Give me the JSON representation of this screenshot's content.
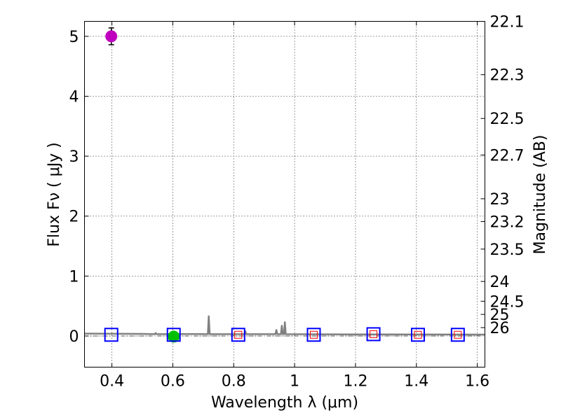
{
  "chart_data": {
    "type": "scatter",
    "xlabel": "Wavelength  λ (μm)",
    "ylabel": "Flux  Fν  ( μJy )",
    "y2label": "Magnitude (AB)",
    "xlim": [
      0.31,
      1.625
    ],
    "ylim": [
      -0.52,
      5.25
    ],
    "grid": true,
    "x_ticks": [
      0.4,
      0.6,
      0.8,
      1.0,
      1.2,
      1.4,
      1.6
    ],
    "x_tick_labels": [
      "0.4",
      "0.6",
      "0.8",
      "1",
      "1.2",
      "1.4",
      "1.6"
    ],
    "y_ticks": [
      0,
      1,
      2,
      3,
      4,
      5
    ],
    "y_tick_labels": [
      "0",
      "1",
      "2",
      "3",
      "4",
      "5"
    ],
    "magnitude_ticks": [
      {
        "label": "22.1",
        "flux": 5.25
      },
      {
        "label": "22.3",
        "flux": 4.36
      },
      {
        "label": "22.5",
        "flux": 3.63
      },
      {
        "label": "22.7",
        "flux": 3.02
      },
      {
        "label": "23",
        "flux": 2.29
      },
      {
        "label": "23.2",
        "flux": 1.91
      },
      {
        "label": "23.5",
        "flux": 1.45
      },
      {
        "label": "24",
        "flux": 0.91
      },
      {
        "label": "24.5",
        "flux": 0.58
      },
      {
        "label": "25",
        "flux": 0.36
      },
      {
        "label": "26",
        "flux": 0.14
      }
    ],
    "series": [
      {
        "name": "detection-ultraviolet",
        "marker": "circle",
        "color": "#bf00bf",
        "points": [
          {
            "x": 0.398,
            "y": 5.0,
            "yerr": 0.14
          }
        ]
      },
      {
        "name": "detection-optical",
        "marker": "circle",
        "color": "#00bf00",
        "points": [
          {
            "x": 0.603,
            "y": -0.01,
            "yerr": 0.03
          }
        ]
      },
      {
        "name": "photometry-open-squares",
        "marker": "square",
        "color": "#0000ff",
        "points": [
          {
            "x": 0.398,
            "y": 0.02
          },
          {
            "x": 0.603,
            "y": 0.02
          },
          {
            "x": 0.815,
            "y": 0.02
          },
          {
            "x": 1.063,
            "y": 0.02
          },
          {
            "x": 1.259,
            "y": 0.03
          },
          {
            "x": 1.405,
            "y": 0.02
          },
          {
            "x": 1.536,
            "y": 0.02
          }
        ]
      },
      {
        "name": "model-points",
        "marker": "small-square",
        "color": "#ff0000",
        "points": [
          {
            "x": 0.815,
            "y": 0.02
          },
          {
            "x": 1.063,
            "y": 0.02
          },
          {
            "x": 1.259,
            "y": 0.03
          },
          {
            "x": 1.405,
            "y": 0.02
          },
          {
            "x": 1.536,
            "y": 0.02
          }
        ]
      }
    ],
    "model_spectrum": {
      "color": "#808080",
      "baseline": [
        [
          0.31,
          0.04
        ],
        [
          0.5,
          0.035
        ],
        [
          0.7,
          0.032
        ],
        [
          0.9,
          0.03
        ],
        [
          1.1,
          0.028
        ],
        [
          1.3,
          0.026
        ],
        [
          1.5,
          0.024
        ],
        [
          1.625,
          0.023
        ]
      ],
      "emission_lines": [
        {
          "x": 0.544,
          "y": 0.05
        },
        {
          "x": 0.718,
          "y": 0.33
        },
        {
          "x": 0.838,
          "y": 0.08
        },
        {
          "x": 0.94,
          "y": 0.1
        },
        {
          "x": 0.958,
          "y": 0.17
        },
        {
          "x": 0.968,
          "y": 0.23
        }
      ]
    },
    "reference_line": {
      "y": 0.0,
      "style": "dash-dot"
    }
  }
}
